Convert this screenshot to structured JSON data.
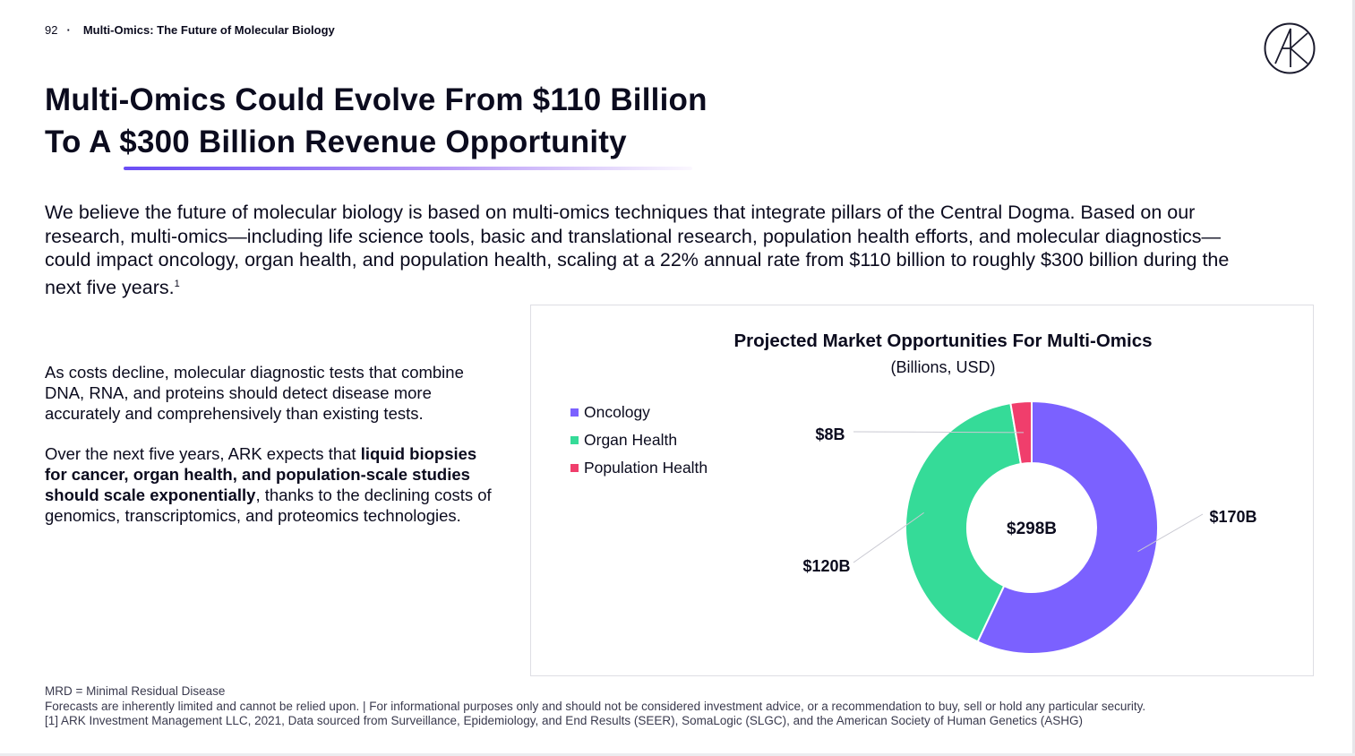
{
  "header": {
    "page_number": "92",
    "section": "Multi-Omics: The Future of Molecular Biology"
  },
  "title": {
    "line1": "Multi-Omics Could Evolve From $110 Billion",
    "line2": "To A $300 Billion Revenue Opportunity"
  },
  "intro": {
    "text": "We believe the future of molecular biology is based on multi-omics techniques that integrate pillars of the Central Dogma. Based on our research, multi-omics—including life science tools, basic and translational research, population health efforts, and molecular diagnostics—could impact oncology, organ health, and population health, scaling at a 22% annual rate from $110 billion to roughly $300 billion during the next five years.",
    "footnote_ref": "1"
  },
  "left": {
    "para1": "As costs decline, molecular diagnostic tests that combine DNA, RNA, and proteins should detect disease more accurately and comprehensively than existing tests.",
    "para2_before": "Over the next five years, ARK expects that ",
    "para2_bold": "liquid biopsies for cancer, organ health, and population-scale studies should scale exponentially",
    "para2_after": ", thanks to the declining costs of genomics, transcriptomics, and proteomics technologies."
  },
  "chart_data": {
    "type": "pie",
    "title": "Projected Market Opportunities For Multi-Omics",
    "subtitle": "(Billions, USD)",
    "categories": [
      "Oncology",
      "Organ Health",
      "Population Health"
    ],
    "values": [
      170,
      120,
      8
    ],
    "value_labels": [
      "$170B",
      "$120B",
      "$8B"
    ],
    "colors": [
      "#7b61ff",
      "#35db98",
      "#f03e6c"
    ],
    "total_label": "$298B",
    "donut": true,
    "legend_position": "left"
  },
  "footer": {
    "line1": "MRD = Minimal Residual Disease",
    "line2": "Forecasts are inherently limited and cannot be relied upon. | For informational purposes only and should not be considered investment advice, or a recommendation to buy, sell or hold any particular security.",
    "line3": "[1] ARK Investment Management LLC, 2021, Data sourced from Surveillance, Epidemiology, and End Results (SEER), SomaLogic (SLGC), and the American Society of Human Genetics (ASHG)"
  }
}
